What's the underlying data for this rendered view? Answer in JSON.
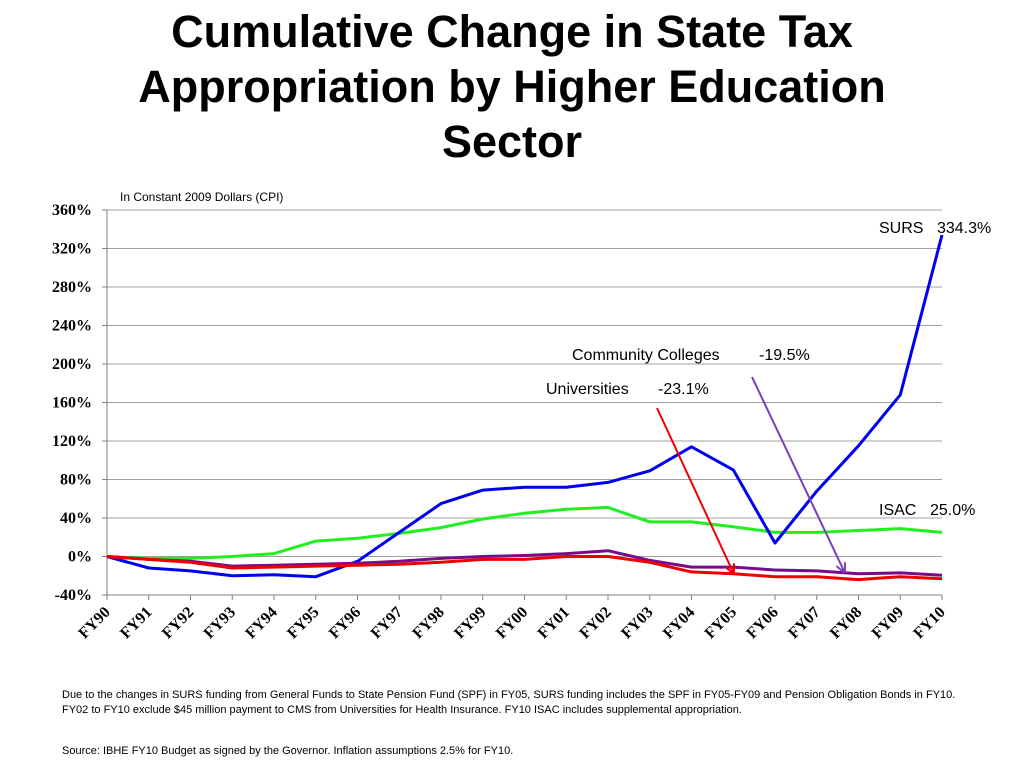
{
  "title": {
    "line1": "Cumulative Change in State Tax",
    "line2": "Appropriation by Higher Education",
    "line3": "Sector"
  },
  "footnote": "Due to the changes in SURS funding from General Funds to State Pension Fund (SPF) in FY05, SURS funding includes the SPF in FY05-FY09 and Pension Obligation Bonds in FY10. FY02 to FY10 exclude $45 million payment to CMS from Universities for Health Insurance.  FY10 ISAC includes supplemental appropriation.",
  "source": "Source: IBHE FY10 Budget as signed by the Governor.  Inflation assumptions 2.5% for  FY10.",
  "colors": {
    "surs": "#0000ee",
    "isac": "#22ee22",
    "universities": "#ee0000",
    "community_colleges": "#7a0a8a",
    "arrow_universities": "#ee0000",
    "arrow_cc": "#7a3fb8",
    "grid": "#a0a0a0"
  },
  "chart_data": {
    "type": "line",
    "subtitle": "In Constant 2009 Dollars (CPI)",
    "categories": [
      "FY90",
      "FY91",
      "FY92",
      "FY93",
      "FY94",
      "FY95",
      "FY96",
      "FY97",
      "FY98",
      "FY99",
      "FY00",
      "FY01",
      "FY02",
      "FY03",
      "FY04",
      "FY05",
      "FY06",
      "FY07",
      "FY08",
      "FY09",
      "FY10"
    ],
    "yticks": [
      "360%",
      "320%",
      "280%",
      "240%",
      "200%",
      "160%",
      "120%",
      "80%",
      "40%",
      "0%",
      "-40%"
    ],
    "ylim": [
      -40,
      360
    ],
    "y_unit": "%",
    "grid": true,
    "series": [
      {
        "key": "isac",
        "values": [
          0,
          -2,
          -2,
          0,
          3,
          16,
          19,
          24,
          30,
          39,
          45,
          49,
          51,
          36,
          36,
          31,
          25,
          25,
          27,
          29,
          25
        ]
      },
      {
        "key": "surs",
        "values": [
          0,
          -12,
          -15,
          -20,
          -19,
          -21,
          -5,
          25,
          55,
          69,
          72,
          72,
          77,
          89,
          114,
          90,
          14,
          68,
          115,
          168,
          334
        ]
      },
      {
        "key": "community_colleges",
        "values": [
          0,
          -3,
          -5,
          -10,
          -9,
          -8,
          -7,
          -5,
          -2,
          0,
          1,
          3,
          6,
          -4,
          -11,
          -11,
          -14,
          -15,
          -18,
          -17,
          -19.5
        ]
      },
      {
        "key": "universities",
        "values": [
          0,
          -3,
          -6,
          -12,
          -11,
          -10,
          -9,
          -8,
          -6,
          -3,
          -3,
          0,
          0,
          -6,
          -16,
          -18,
          -21,
          -21,
          -24,
          -21,
          -23.1
        ]
      }
    ],
    "annotations": [
      {
        "key": "surs",
        "name": "SURS",
        "value": "334.3%"
      },
      {
        "key": "community_colleges",
        "name": "Community Colleges",
        "value": "-19.5%"
      },
      {
        "key": "universities",
        "name": "Universities",
        "value": "-23.1%"
      },
      {
        "key": "isac",
        "name": "ISAC",
        "value": "25.0%"
      }
    ]
  }
}
